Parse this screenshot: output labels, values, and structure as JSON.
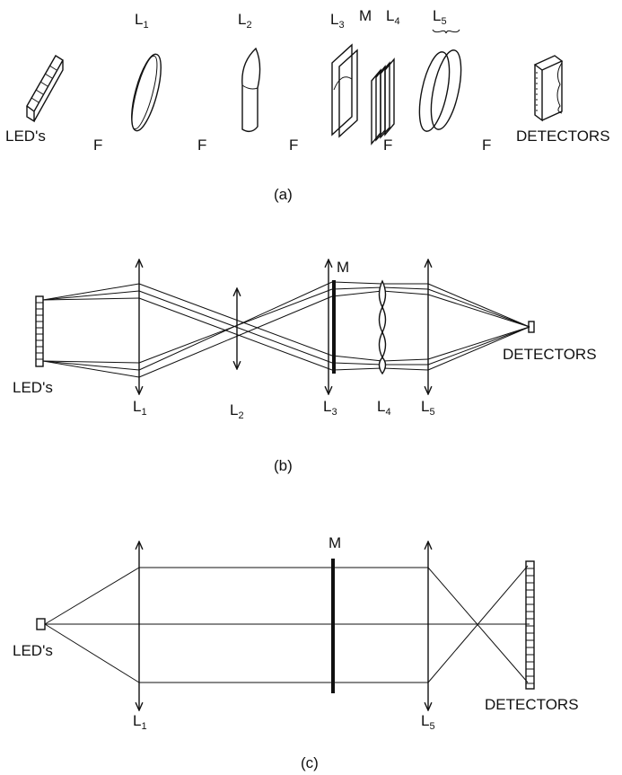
{
  "panel_a": {
    "caption": "(a)",
    "leds": "LED's",
    "detectors": "DETECTORS",
    "focal": "F",
    "mask": "M",
    "lenses": [
      {
        "base": "L",
        "sub": "1"
      },
      {
        "base": "L",
        "sub": "2"
      },
      {
        "base": "L",
        "sub": "3"
      },
      {
        "base": "L",
        "sub": "4"
      },
      {
        "base": "L",
        "sub": "5"
      }
    ]
  },
  "panel_b": {
    "caption": "(b)",
    "leds": "LED's",
    "detectors": "DETECTORS",
    "mask": "M",
    "lenses": [
      {
        "base": "L",
        "sub": "1"
      },
      {
        "base": "L",
        "sub": "2"
      },
      {
        "base": "L",
        "sub": "3"
      },
      {
        "base": "L",
        "sub": "4"
      },
      {
        "base": "L",
        "sub": "5"
      }
    ]
  },
  "panel_c": {
    "caption": "(c)",
    "leds": "LED's",
    "detectors": "DETECTORS",
    "mask": "M",
    "lenses": [
      {
        "base": "L",
        "sub": "1"
      },
      {
        "base": "L",
        "sub": "5"
      }
    ]
  }
}
